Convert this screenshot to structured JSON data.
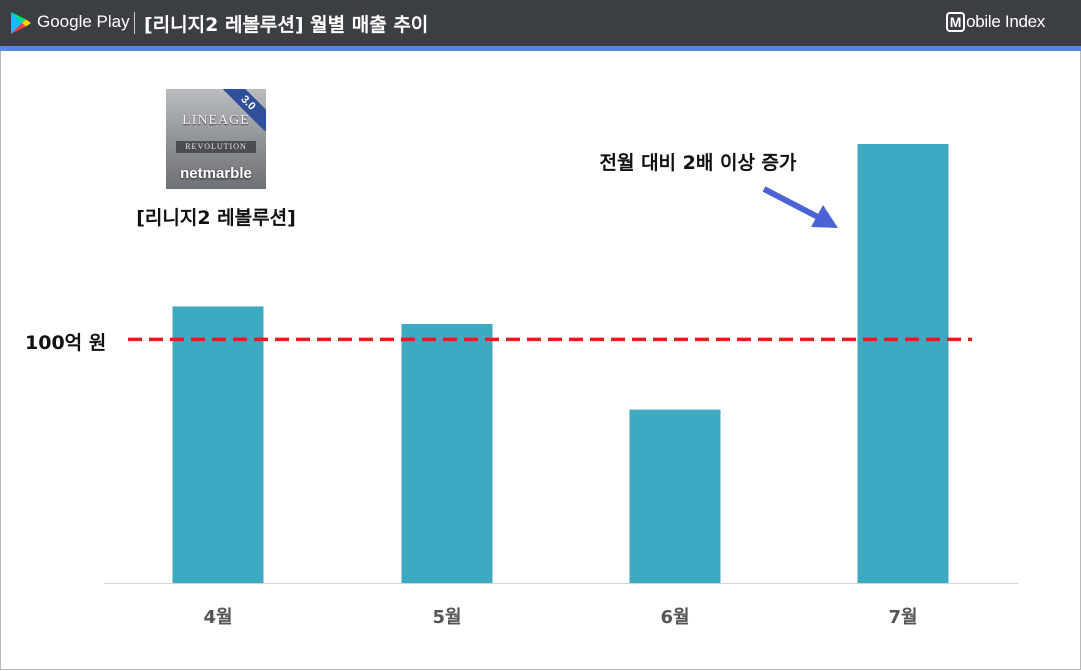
{
  "header": {
    "store_name": "Google Play",
    "title": "[리니지2 레볼루션] 월별 매출 추이",
    "brand": "Mobile Index",
    "brand_badge": "M",
    "brand_rest": "obile Index"
  },
  "app": {
    "caption": "[리니지2 레볼루션]",
    "icon_badge": "3.0",
    "icon_logo": "LINEAGE",
    "icon_sub": "REVOLUTION",
    "icon_maker": "netmarble"
  },
  "colors": {
    "bar": "#3eaac2",
    "reference_line": "#e01e1e",
    "arrow": "#4a62d4",
    "header_bg": "#3b3e43",
    "header_rule": "#5b83e0"
  },
  "chart_data": {
    "type": "bar",
    "categories": [
      "4월",
      "5월",
      "6월",
      "7월"
    ],
    "values": [
      126,
      118,
      79,
      200
    ],
    "ylim": [
      0,
      200
    ],
    "title": "",
    "xlabel": "",
    "ylabel": "",
    "grid": false,
    "reference_line": {
      "value": 111,
      "label": "100억 원",
      "style": "dashed"
    },
    "annotation": {
      "text": "전월 대비 2배 이상 증가",
      "target_category": "7월"
    }
  }
}
